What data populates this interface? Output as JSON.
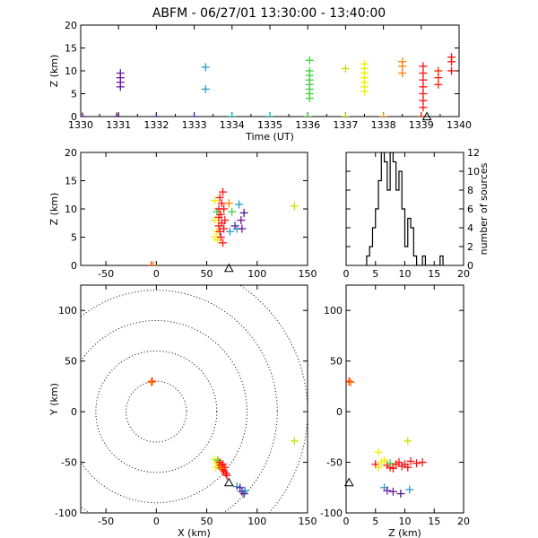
{
  "title": "ABFM - 06/27/01 13:30:00 - 13:40:00",
  "chart_data": [
    {
      "id": "time-height",
      "type": "scatter",
      "xlabel": "Time (UT)",
      "ylabel": "Z (km)",
      "xlim": [
        1330,
        1340
      ],
      "ylim": [
        0,
        20
      ],
      "xticks": [
        1330,
        1331,
        1332,
        1333,
        1334,
        1335,
        1336,
        1337,
        1338,
        1339,
        1340
      ],
      "yticks": [
        0,
        5,
        10,
        15,
        20
      ],
      "points": [
        {
          "x": 1330.05,
          "y": 0,
          "color": "#5a007a"
        },
        {
          "x": 1330.95,
          "y": 0,
          "color": "#5a007a"
        },
        {
          "x": 1331.05,
          "y": 6.5,
          "color": "#6a1aa0"
        },
        {
          "x": 1331.05,
          "y": 7.5,
          "color": "#6a1aa0"
        },
        {
          "x": 1331.05,
          "y": 8.5,
          "color": "#6a1aa0"
        },
        {
          "x": 1331.05,
          "y": 9.5,
          "color": "#6a1aa0"
        },
        {
          "x": 1332.0,
          "y": 0,
          "color": "#4a1890"
        },
        {
          "x": 1333.0,
          "y": 0,
          "color": "#3030c8"
        },
        {
          "x": 1333.3,
          "y": 6,
          "color": "#2a9ac8"
        },
        {
          "x": 1333.3,
          "y": 10.8,
          "color": "#2a9ac8"
        },
        {
          "x": 1334.0,
          "y": 0,
          "color": "#00c8c8"
        },
        {
          "x": 1335.0,
          "y": 0,
          "color": "#00c8a0"
        },
        {
          "x": 1336.0,
          "y": 0,
          "color": "#40d040"
        },
        {
          "x": 1336.05,
          "y": 4,
          "color": "#40d040"
        },
        {
          "x": 1336.05,
          "y": 5,
          "color": "#40d040"
        },
        {
          "x": 1336.05,
          "y": 6,
          "color": "#40d040"
        },
        {
          "x": 1336.05,
          "y": 7,
          "color": "#40d040"
        },
        {
          "x": 1336.05,
          "y": 8,
          "color": "#40d040"
        },
        {
          "x": 1336.05,
          "y": 9,
          "color": "#40d040"
        },
        {
          "x": 1336.05,
          "y": 10,
          "color": "#40d040"
        },
        {
          "x": 1336.05,
          "y": 12.3,
          "color": "#40d040"
        },
        {
          "x": 1337.0,
          "y": 0,
          "color": "#c8e000"
        },
        {
          "x": 1337.0,
          "y": 10.5,
          "color": "#c8e000"
        },
        {
          "x": 1337.5,
          "y": 5.5,
          "color": "#f0f000"
        },
        {
          "x": 1337.5,
          "y": 6.5,
          "color": "#f0f000"
        },
        {
          "x": 1337.5,
          "y": 7.5,
          "color": "#f0f000"
        },
        {
          "x": 1337.5,
          "y": 8.5,
          "color": "#f0f000"
        },
        {
          "x": 1337.5,
          "y": 9.5,
          "color": "#f0f000"
        },
        {
          "x": 1337.5,
          "y": 10.5,
          "color": "#f0f000"
        },
        {
          "x": 1337.5,
          "y": 11.5,
          "color": "#f0f000"
        },
        {
          "x": 1338.0,
          "y": 0,
          "color": "#ffa000"
        },
        {
          "x": 1338.5,
          "y": 9.5,
          "color": "#ff8000"
        },
        {
          "x": 1338.5,
          "y": 11,
          "color": "#ff8000"
        },
        {
          "x": 1338.5,
          "y": 12,
          "color": "#ff8000"
        },
        {
          "x": 1339.0,
          "y": 0,
          "color": "#ff3000"
        },
        {
          "x": 1339.05,
          "y": 2,
          "color": "#ff1010"
        },
        {
          "x": 1339.05,
          "y": 3.5,
          "color": "#ff1010"
        },
        {
          "x": 1339.05,
          "y": 5,
          "color": "#ff1010"
        },
        {
          "x": 1339.05,
          "y": 6.5,
          "color": "#ff1010"
        },
        {
          "x": 1339.05,
          "y": 8,
          "color": "#ff1010"
        },
        {
          "x": 1339.05,
          "y": 9.5,
          "color": "#ff1010"
        },
        {
          "x": 1339.05,
          "y": 11,
          "color": "#ff1010"
        },
        {
          "x": 1339.45,
          "y": 7,
          "color": "#ff2000"
        },
        {
          "x": 1339.45,
          "y": 8.5,
          "color": "#ff2000"
        },
        {
          "x": 1339.45,
          "y": 10,
          "color": "#ff2000"
        },
        {
          "x": 1339.8,
          "y": 10,
          "color": "#ff1010"
        },
        {
          "x": 1339.8,
          "y": 12,
          "color": "#ff1010"
        },
        {
          "x": 1339.8,
          "y": 13,
          "color": "#ff1010"
        }
      ],
      "station_markers": [
        {
          "x": 1339.15,
          "y": 0
        }
      ]
    },
    {
      "id": "x-z",
      "type": "scatter",
      "ylabel": "Z (km)",
      "xlim": [
        -75,
        150
      ],
      "ylim": [
        0,
        20
      ],
      "xticks": [
        -50,
        0,
        50,
        100,
        150
      ],
      "yticks": [
        0,
        5,
        10,
        15,
        20
      ],
      "points": [
        {
          "x": -5,
          "y": 0,
          "color": "#ff2000"
        },
        {
          "x": -3,
          "y": 0,
          "color": "#ff8000"
        },
        {
          "x": 58,
          "y": 5,
          "color": "#f0f000"
        },
        {
          "x": 58,
          "y": 8,
          "color": "#f0f000"
        },
        {
          "x": 58,
          "y": 11.5,
          "color": "#f0f000"
        },
        {
          "x": 60,
          "y": 6,
          "color": "#f0f000"
        },
        {
          "x": 60,
          "y": 9.5,
          "color": "#40d040"
        },
        {
          "x": 61,
          "y": 4.5,
          "color": "#f0f000"
        },
        {
          "x": 62,
          "y": 7,
          "color": "#ff1010"
        },
        {
          "x": 62,
          "y": 8.5,
          "color": "#ff1010"
        },
        {
          "x": 62,
          "y": 10,
          "color": "#ff1010"
        },
        {
          "x": 63,
          "y": 6,
          "color": "#ff1010"
        },
        {
          "x": 63,
          "y": 12,
          "color": "#ff1010"
        },
        {
          "x": 64,
          "y": 5,
          "color": "#ff1010"
        },
        {
          "x": 64,
          "y": 9,
          "color": "#ff1010"
        },
        {
          "x": 65,
          "y": 7.5,
          "color": "#ff1010"
        },
        {
          "x": 65,
          "y": 11,
          "color": "#ff1010"
        },
        {
          "x": 66,
          "y": 4,
          "color": "#ff1010"
        },
        {
          "x": 66,
          "y": 13,
          "color": "#ff1010"
        },
        {
          "x": 67,
          "y": 6.5,
          "color": "#ff1010"
        },
        {
          "x": 67,
          "y": 10,
          "color": "#ff1010"
        },
        {
          "x": 68,
          "y": 8,
          "color": "#ff1010"
        },
        {
          "x": 72,
          "y": 11,
          "color": "#ff8000"
        },
        {
          "x": 73,
          "y": 6,
          "color": "#2a9ac8"
        },
        {
          "x": 75,
          "y": 9.5,
          "color": "#40d040"
        },
        {
          "x": 78,
          "y": 7,
          "color": "#6a1aa0"
        },
        {
          "x": 80,
          "y": 6.5,
          "color": "#2a9ac8"
        },
        {
          "x": 82,
          "y": 10.8,
          "color": "#2a9ac8"
        },
        {
          "x": 84,
          "y": 8,
          "color": "#6a1aa0"
        },
        {
          "x": 85,
          "y": 6.5,
          "color": "#6a1aa0"
        },
        {
          "x": 87,
          "y": 9.3,
          "color": "#4a1890"
        },
        {
          "x": 137,
          "y": 10.5,
          "color": "#c8e000"
        }
      ],
      "station_markers": [
        {
          "x": 72,
          "y": -0.5
        }
      ]
    },
    {
      "id": "z-histogram",
      "type": "bar",
      "ylabel": "number of sources",
      "xlim": [
        0,
        20
      ],
      "ylim": [
        0,
        12
      ],
      "xticks": [
        0,
        5,
        10,
        15,
        20
      ],
      "yticks": [
        0,
        2,
        4,
        6,
        8,
        10,
        12
      ],
      "bin_width": 0.5,
      "bins_start": [
        3.5,
        4,
        4.5,
        5,
        5.5,
        6,
        6.5,
        7,
        7.5,
        8,
        8.5,
        9,
        9.5,
        10,
        10.5,
        11,
        11.5,
        12,
        12.5,
        13,
        13.5,
        14,
        14.5,
        15,
        15.5,
        16
      ],
      "counts": [
        1,
        2,
        4,
        6,
        9,
        12,
        11,
        8,
        12,
        11,
        8,
        10,
        6,
        2,
        5,
        4,
        1,
        0,
        0,
        1,
        0,
        0,
        0,
        0,
        0,
        1
      ]
    },
    {
      "id": "x-y",
      "type": "scatter",
      "xlabel": "X (km)",
      "ylabel": "Y (km)",
      "xlim": [
        -75,
        150
      ],
      "ylim": [
        -100,
        125
      ],
      "xticks": [
        -50,
        0,
        50,
        100,
        150
      ],
      "yticks": [
        -100,
        -50,
        0,
        50,
        100
      ],
      "range_rings_km": [
        30,
        60,
        90,
        120,
        150
      ],
      "points": [
        {
          "x": -4,
          "y": 30,
          "color": "#ff2000"
        },
        {
          "x": -5,
          "y": 29,
          "color": "#ff8000"
        },
        {
          "x": 58,
          "y": -47,
          "color": "#f0f000"
        },
        {
          "x": 60,
          "y": -50,
          "color": "#f0f000"
        },
        {
          "x": 62,
          "y": -52,
          "color": "#f0f000"
        },
        {
          "x": 59,
          "y": -55,
          "color": "#f0f000"
        },
        {
          "x": 61,
          "y": -48,
          "color": "#40d040"
        },
        {
          "x": 63,
          "y": -50,
          "color": "#ff1010"
        },
        {
          "x": 64,
          "y": -53,
          "color": "#ff1010"
        },
        {
          "x": 65,
          "y": -55,
          "color": "#ff1010"
        },
        {
          "x": 66,
          "y": -52,
          "color": "#ff1010"
        },
        {
          "x": 66,
          "y": -57,
          "color": "#ff1010"
        },
        {
          "x": 67,
          "y": -59,
          "color": "#ff1010"
        },
        {
          "x": 68,
          "y": -55,
          "color": "#ff1010"
        },
        {
          "x": 69,
          "y": -61,
          "color": "#ff1010"
        },
        {
          "x": 70,
          "y": -63,
          "color": "#ff1010"
        },
        {
          "x": 64,
          "y": -56,
          "color": "#ff8000"
        },
        {
          "x": 80,
          "y": -74,
          "color": "#2a9ac8"
        },
        {
          "x": 83,
          "y": -75,
          "color": "#6a1aa0"
        },
        {
          "x": 85,
          "y": -79,
          "color": "#6a1aa0"
        },
        {
          "x": 87,
          "y": -81,
          "color": "#4a1890"
        },
        {
          "x": 88,
          "y": -78,
          "color": "#2a9ac8"
        },
        {
          "x": 137,
          "y": -29,
          "color": "#c8e000"
        }
      ],
      "station_markers": [
        {
          "x": 72,
          "y": -70
        }
      ]
    },
    {
      "id": "z-y",
      "type": "scatter",
      "xlabel": "Z (km)",
      "xlim": [
        0,
        20
      ],
      "ylim": [
        -100,
        125
      ],
      "xticks": [
        0,
        5,
        10,
        15,
        20
      ],
      "yticks": [
        -100,
        -50,
        0,
        50,
        100
      ],
      "points": [
        {
          "x": 0.5,
          "y": 30,
          "color": "#ff2000"
        },
        {
          "x": 0.8,
          "y": 29,
          "color": "#ff8000"
        },
        {
          "x": 5,
          "y": -52,
          "color": "#ff1010"
        },
        {
          "x": 5.5,
          "y": -55,
          "color": "#f0f000"
        },
        {
          "x": 6,
          "y": -50,
          "color": "#f0f000"
        },
        {
          "x": 6.5,
          "y": -48,
          "color": "#f0f000"
        },
        {
          "x": 7,
          "y": -53,
          "color": "#ff1010"
        },
        {
          "x": 7.5,
          "y": -55,
          "color": "#ff1010"
        },
        {
          "x": 7.5,
          "y": -51,
          "color": "#40d040"
        },
        {
          "x": 8,
          "y": -56,
          "color": "#ff1010"
        },
        {
          "x": 8.5,
          "y": -52,
          "color": "#ff1010"
        },
        {
          "x": 9,
          "y": -50,
          "color": "#ff1010"
        },
        {
          "x": 9.5,
          "y": -54,
          "color": "#ff1010"
        },
        {
          "x": 10,
          "y": -52,
          "color": "#ff1010"
        },
        {
          "x": 10.5,
          "y": -55,
          "color": "#ff1010"
        },
        {
          "x": 11,
          "y": -49,
          "color": "#ff1010"
        },
        {
          "x": 12,
          "y": -51,
          "color": "#ff1010"
        },
        {
          "x": 13,
          "y": -50,
          "color": "#ff1010"
        },
        {
          "x": 5.5,
          "y": -40,
          "color": "#f0f000"
        },
        {
          "x": 10.5,
          "y": -29,
          "color": "#c8e000"
        },
        {
          "x": 6.5,
          "y": -75,
          "color": "#2a9ac8"
        },
        {
          "x": 7,
          "y": -78,
          "color": "#6a1aa0"
        },
        {
          "x": 8,
          "y": -79,
          "color": "#6a1aa0"
        },
        {
          "x": 9.3,
          "y": -81,
          "color": "#4a1890"
        },
        {
          "x": 10.8,
          "y": -77,
          "color": "#2a9ac8"
        }
      ],
      "station_markers": [
        {
          "x": 0.5,
          "y": -70
        }
      ]
    }
  ]
}
